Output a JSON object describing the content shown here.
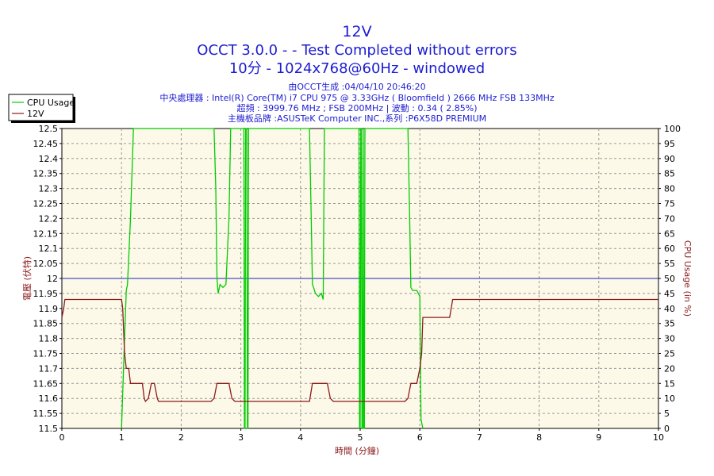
{
  "chart_data": {
    "type": "line",
    "title": "12V",
    "subtitle_lines": [
      "OCCT 3.0.0 -  - Test Completed without errors",
      "10分 - 1024x768@60Hz - windowed"
    ],
    "info_lines": [
      "由OCCT生成 :04/04/10 20:46:20",
      "中央處理器 : Intel(R) Core(TM) i7 CPU 975 @ 3.33GHz ( Bloomfield ) 2666 MHz FSB 133MHz",
      "超頻 : 3999.76 MHz ; FSB 200MHz | 波動 : 0.34 ( 2.85%)",
      "主機板品牌 :ASUSTeK Computer INC.,系列 :P6X58D PREMIUM"
    ],
    "xlabel": "時間 (分鐘)",
    "ylabel": "電壓 (伏特)",
    "y2label": "CPU Usage (in %)",
    "xlim": [
      0,
      10
    ],
    "ylim": [
      11.5,
      12.5
    ],
    "y2lim": [
      0,
      100
    ],
    "x_ticks": [
      "0",
      "1",
      "2",
      "3",
      "4",
      "5",
      "6",
      "7",
      "8",
      "9",
      "10"
    ],
    "y_ticks": [
      "11.5",
      "11.55",
      "11.6",
      "11.65",
      "11.7",
      "11.75",
      "11.8",
      "11.85",
      "11.9",
      "11.95",
      "12",
      "12.05",
      "12.1",
      "12.15",
      "12.2",
      "12.25",
      "12.3",
      "12.35",
      "12.4",
      "12.45",
      "12.5"
    ],
    "y2_ticks": [
      "0",
      "5",
      "10",
      "15",
      "20",
      "25",
      "30",
      "35",
      "40",
      "45",
      "50",
      "55",
      "60",
      "65",
      "70",
      "75",
      "80",
      "85",
      "90",
      "95",
      "100"
    ],
    "grid": true,
    "legend_position": "top-left",
    "reference_line": {
      "y": 12.0,
      "color": "#2020c0"
    },
    "series": [
      {
        "name": "CPU Usage",
        "axis": "right",
        "color": "#00cc00",
        "x": [
          1.0,
          1.05,
          1.08,
          1.1,
          1.15,
          1.2,
          1.25,
          2.55,
          2.58,
          2.6,
          2.62,
          2.65,
          2.7,
          2.75,
          2.8,
          2.83,
          2.86,
          3.05,
          3.06,
          3.07,
          3.08,
          3.1,
          3.11,
          3.12,
          3.13,
          3.14,
          4.15,
          4.18,
          4.2,
          4.22,
          4.25,
          4.3,
          4.35,
          4.38,
          4.4,
          4.98,
          4.99,
          5.0,
          5.01,
          5.02,
          5.03,
          5.04,
          5.05,
          5.06,
          5.07,
          5.08,
          5.8,
          5.83,
          5.85,
          5.88,
          5.9,
          5.95,
          6.0,
          6.02,
          6.05
        ],
        "values": [
          0,
          30,
          46,
          48,
          70,
          100,
          100,
          100,
          80,
          50,
          45,
          48,
          47,
          48,
          70,
          100,
          100,
          100,
          0,
          0,
          100,
          100,
          0,
          0,
          100,
          100,
          100,
          70,
          48,
          47,
          45,
          44,
          45,
          43,
          100,
          100,
          0,
          0,
          100,
          100,
          0,
          0,
          100,
          0,
          0,
          100,
          100,
          70,
          47,
          46,
          46,
          46,
          44,
          3,
          0
        ]
      },
      {
        "name": "12V",
        "axis": "left",
        "color": "#8b1a1a",
        "x": [
          0,
          0.03,
          0.05,
          0.1,
          1.0,
          1.02,
          1.05,
          1.08,
          1.12,
          1.15,
          1.2,
          1.35,
          1.38,
          1.4,
          1.45,
          1.5,
          1.55,
          1.6,
          1.62,
          1.65,
          1.7,
          2.5,
          2.55,
          2.6,
          2.8,
          2.85,
          2.9,
          4.15,
          4.2,
          4.25,
          4.45,
          4.5,
          4.55,
          5.75,
          5.8,
          5.85,
          5.95,
          6.0,
          6.03,
          6.05,
          6.1,
          6.5,
          6.55,
          6.6,
          10.0
        ],
        "values": [
          11.87,
          11.9,
          11.93,
          11.93,
          11.93,
          11.9,
          11.75,
          11.7,
          11.7,
          11.65,
          11.65,
          11.65,
          11.6,
          11.59,
          11.6,
          11.65,
          11.65,
          11.6,
          11.59,
          11.59,
          11.59,
          11.59,
          11.6,
          11.65,
          11.65,
          11.6,
          11.59,
          11.59,
          11.65,
          11.65,
          11.65,
          11.6,
          11.59,
          11.59,
          11.6,
          11.65,
          11.65,
          11.7,
          11.75,
          11.87,
          11.87,
          11.87,
          11.93,
          11.93,
          11.93
        ]
      }
    ]
  }
}
